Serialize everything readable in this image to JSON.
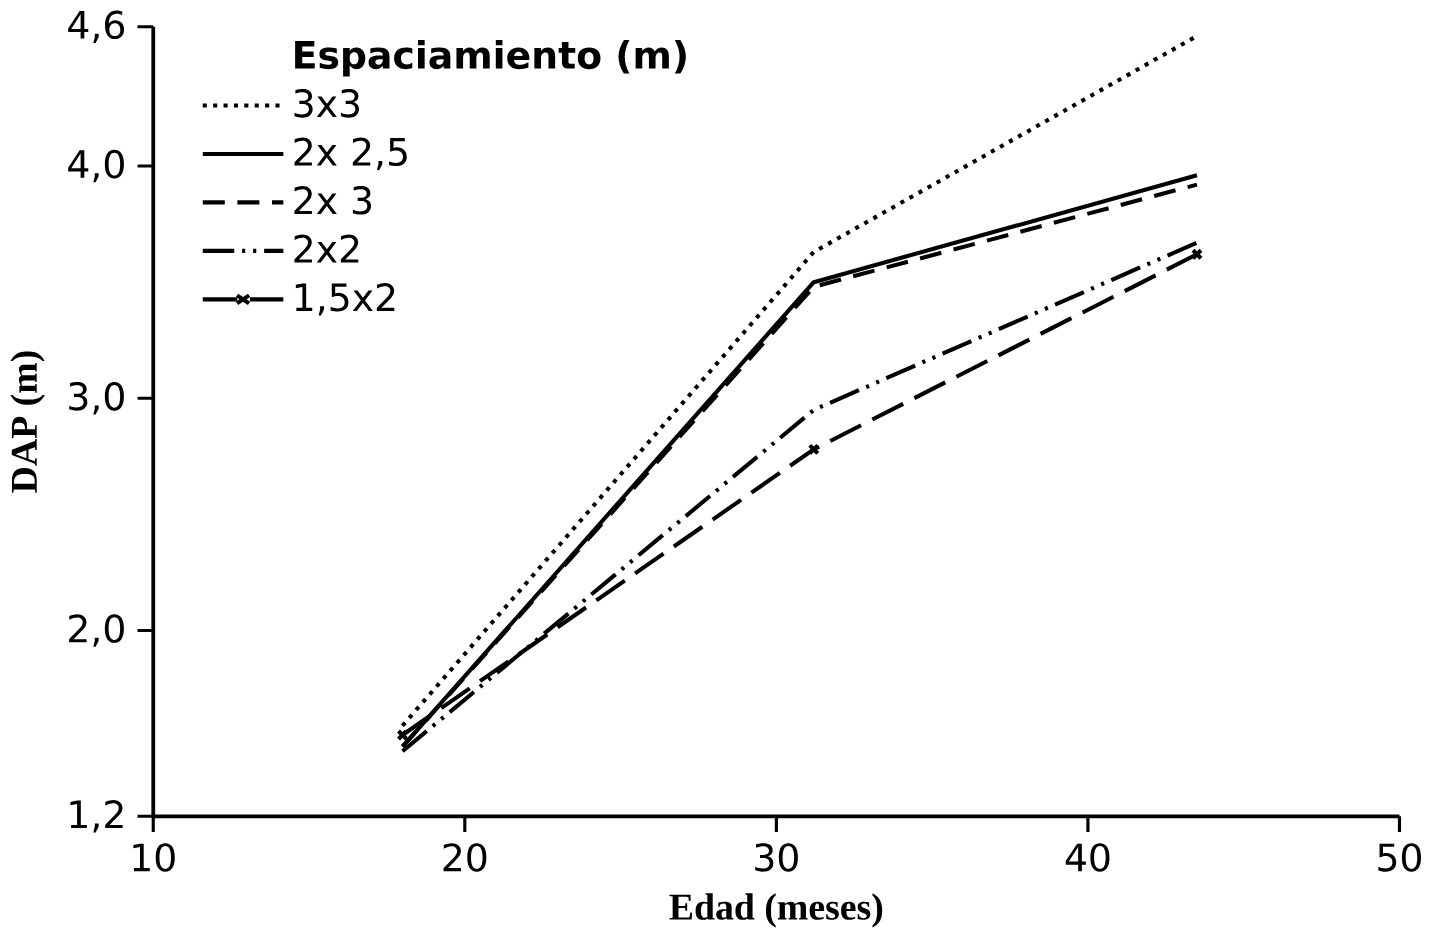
{
  "chart_data": {
    "type": "line",
    "xlabel": "Edad (meses)",
    "ylabel": "DAP (m)",
    "legend_title": "Espaciamiento (m)",
    "legend": "top left",
    "grid": false,
    "x": [
      18,
      31.2,
      43.5
    ],
    "xlim": [
      10,
      50
    ],
    "xticks": [
      10,
      20,
      30,
      40,
      50
    ],
    "ylim": [
      1.2,
      4.6
    ],
    "yticks": [
      {
        "value": 1.2,
        "label": "1,2"
      },
      {
        "value": 2.0,
        "label": "2,0"
      },
      {
        "value": 3.0,
        "label": "3,0"
      },
      {
        "value": 4.0,
        "label": "4,0"
      },
      {
        "value": 4.6,
        "label": "4,6"
      }
    ],
    "series": [
      {
        "name": "3x3",
        "color": "#000000",
        "line_style": "dotted",
        "values": [
          1.59,
          3.63,
          4.56
        ]
      },
      {
        "name": "2x 2,5",
        "color": "#000000",
        "line_style": "solid",
        "values": [
          1.5,
          3.5,
          3.96
        ]
      },
      {
        "name": "2x 3",
        "color": "#000000",
        "line_style": "dashed",
        "values": [
          1.5,
          3.48,
          3.92
        ]
      },
      {
        "name": "2x2",
        "color": "#000000",
        "line_style": "dashdotdot",
        "values": [
          1.48,
          2.95,
          3.67
        ]
      },
      {
        "name": "1,5x2",
        "color": "#000000",
        "line_style": "longdash",
        "marker": "cross",
        "values": [
          1.55,
          2.78,
          3.62
        ]
      }
    ]
  }
}
